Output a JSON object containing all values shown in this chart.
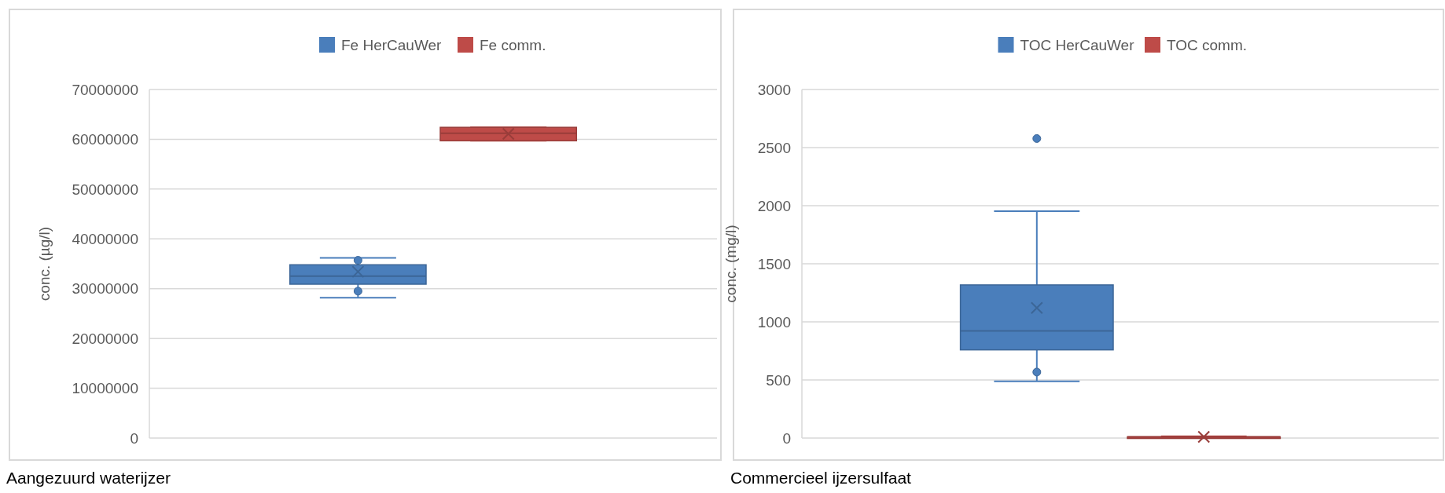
{
  "chart_data": [
    {
      "type": "box",
      "categories": [
        null
      ],
      "ylabel": "conc. (µg/l)",
      "ylim": [
        0,
        70000000
      ],
      "yticks": [
        0,
        10000000,
        20000000,
        30000000,
        40000000,
        50000000,
        60000000,
        70000000
      ],
      "grid": "y",
      "legend": "top",
      "annotations": [
        "Aangezuurd waterijzer"
      ],
      "series": [
        {
          "name": "Fe HerCauWer",
          "color": "#4a7ebb",
          "boxes": [
            {
              "low": 28200000,
              "q1": 30900000,
              "median": 32500000,
              "q3": 34800000,
              "high": 36200000,
              "mean": 33400000,
              "outliers": [
                35700000,
                29500000
              ]
            }
          ]
        },
        {
          "name": "Fe comm.",
          "color": "#be4b48",
          "boxes": [
            {
              "low": 59700000,
              "q1": 59700000,
              "median": 61200000,
              "q3": 62400000,
              "high": 62400000,
              "mean": 61100000
            }
          ]
        }
      ]
    },
    {
      "type": "box",
      "categories": [
        null
      ],
      "ylabel": "conc. (mg/l)",
      "ylim": [
        0,
        3000
      ],
      "yticks": [
        0,
        500,
        1000,
        1500,
        2000,
        2500,
        3000
      ],
      "grid": "y",
      "legend": "top",
      "annotations": [
        "Commercieel ijzersulfaat"
      ],
      "series": [
        {
          "name": "TOC HerCauWer",
          "color": "#4a7ebb",
          "boxes": [
            {
              "low": 489,
              "q1": 759,
              "median": 923,
              "q3": 1318,
              "high": 1953,
              "mean": 1120,
              "outliers": [
                2578,
                568
              ]
            }
          ]
        },
        {
          "name": "TOC comm.",
          "color": "#be4b48",
          "boxes": [
            {
              "low": 5,
              "q1": 5,
              "median": 10,
              "q3": 10,
              "high": 15,
              "mean": 10
            }
          ]
        }
      ]
    }
  ]
}
